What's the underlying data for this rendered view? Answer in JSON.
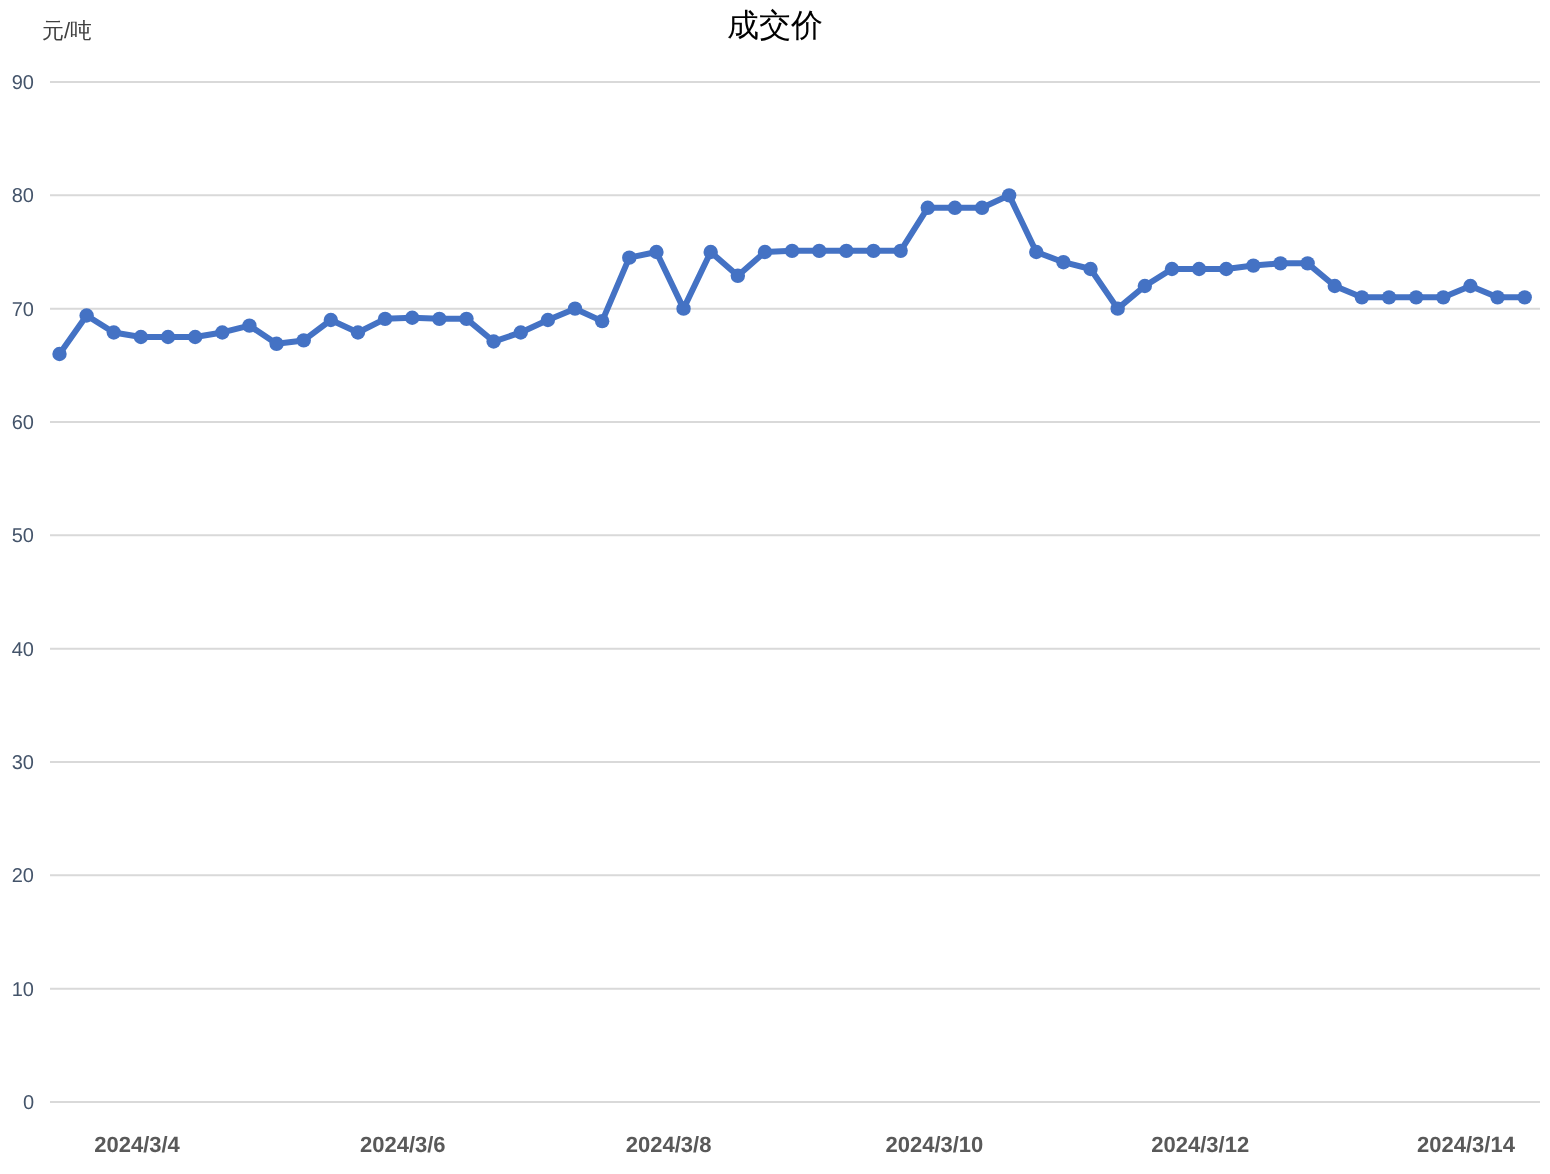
{
  "chart_data": {
    "type": "line",
    "title": "成交价",
    "ylabel": "元/吨",
    "color": "#4472c4",
    "marker": "circle",
    "line_style": "solid",
    "grid": "y",
    "x": [
      "2024-03-03T10:00",
      "2024-03-03T14:54",
      "2024-03-03T19:48",
      "2024-03-04T00:42",
      "2024-03-04T05:36",
      "2024-03-04T10:30",
      "2024-03-04T15:24",
      "2024-03-04T20:18",
      "2024-03-05T01:12",
      "2024-03-05T06:06",
      "2024-03-05T11:00",
      "2024-03-05T15:54",
      "2024-03-05T20:48",
      "2024-03-06T01:42",
      "2024-03-06T06:36",
      "2024-03-06T11:30",
      "2024-03-06T16:24",
      "2024-03-06T21:18",
      "2024-03-07T02:12",
      "2024-03-07T07:06",
      "2024-03-07T12:00",
      "2024-03-07T16:54",
      "2024-03-07T21:48",
      "2024-03-08T02:42",
      "2024-03-08T07:36",
      "2024-03-08T12:30",
      "2024-03-08T17:24",
      "2024-03-08T22:18",
      "2024-03-09T03:12",
      "2024-03-09T08:06",
      "2024-03-09T13:00",
      "2024-03-09T17:54",
      "2024-03-09T22:48",
      "2024-03-10T03:42",
      "2024-03-10T08:36",
      "2024-03-10T13:30",
      "2024-03-10T18:24",
      "2024-03-10T23:18",
      "2024-03-11T04:12",
      "2024-03-11T09:06",
      "2024-03-11T14:00",
      "2024-03-11T18:54",
      "2024-03-11T23:48",
      "2024-03-12T04:42",
      "2024-03-12T09:36",
      "2024-03-12T14:30",
      "2024-03-12T19:24",
      "2024-03-13T00:18",
      "2024-03-13T05:12",
      "2024-03-13T10:06",
      "2024-03-13T15:00",
      "2024-03-13T19:54",
      "2024-03-14T00:48",
      "2024-03-14T05:42",
      "2024-03-14T10:36"
    ],
    "values": [
      66.0,
      69.4,
      67.9,
      67.5,
      67.5,
      67.5,
      67.9,
      68.5,
      66.9,
      67.2,
      69.0,
      67.9,
      69.1,
      69.2,
      69.1,
      69.1,
      67.1,
      67.9,
      69.0,
      70.0,
      68.9,
      74.5,
      75.0,
      70.0,
      75.0,
      72.9,
      75.0,
      75.1,
      75.1,
      75.1,
      75.1,
      75.1,
      78.9,
      78.9,
      78.9,
      80.0,
      75.0,
      74.1,
      73.5,
      70.0,
      72.0,
      73.5,
      73.5,
      73.5,
      73.8,
      74.0,
      74.0,
      72.0,
      71.0,
      71.0,
      71.0,
      71.0,
      72.0,
      71.0,
      71.0
    ],
    "xlim": [
      "2024-03-03T08:17",
      "2024-03-14T13:22"
    ],
    "xticks": [
      {
        "value": "2024-03-04",
        "label": "2024/3/4"
      },
      {
        "value": "2024-03-06",
        "label": "2024/3/6"
      },
      {
        "value": "2024-03-08",
        "label": "2024/3/8"
      },
      {
        "value": "2024-03-10",
        "label": "2024/3/10"
      },
      {
        "value": "2024-03-12",
        "label": "2024/3/12"
      },
      {
        "value": "2024-03-14",
        "label": "2024/3/14"
      }
    ],
    "ylim": [
      0,
      90
    ],
    "yticks": [
      0,
      10,
      20,
      30,
      40,
      50,
      60,
      70,
      80,
      90
    ]
  }
}
